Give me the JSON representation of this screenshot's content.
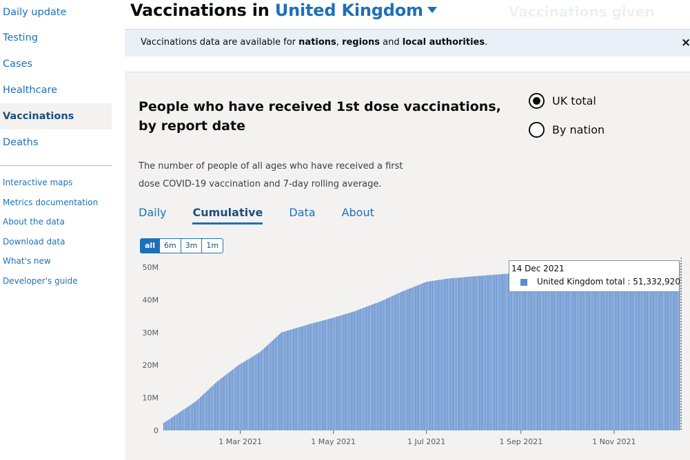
{
  "sidebar": {
    "main_items": [
      {
        "label": "Daily update"
      },
      {
        "label": "Testing"
      },
      {
        "label": "Cases"
      },
      {
        "label": "Healthcare"
      },
      {
        "label": "Vaccinations",
        "active": true
      },
      {
        "label": "Deaths"
      }
    ],
    "sub_items": [
      {
        "label": "Interactive maps"
      },
      {
        "label": "Metrics documentation"
      },
      {
        "label": "About the data"
      },
      {
        "label": "Download data"
      },
      {
        "label": "What's new"
      },
      {
        "label": "Developer's guide"
      }
    ]
  },
  "header": {
    "title_prefix": "Vaccinations in ",
    "area": "United Kingdom",
    "ghost_heading": "Vaccinations given"
  },
  "banner": {
    "text_1": "Vaccinations data are available for ",
    "nations": "nations",
    "comma": ", ",
    "regions": "regions",
    "and": " and ",
    "local_authorities": "local authorities",
    "period": ".",
    "close_label": "×"
  },
  "card": {
    "title": "People who have received 1st dose vaccinations, by report date",
    "description": "The number of people of all ages who have received a first dose COVID-19 vaccination and 7-day rolling average.",
    "radios": [
      {
        "label": "UK total",
        "checked": true
      },
      {
        "label": "By nation",
        "checked": false
      }
    ],
    "tabs": [
      {
        "label": "Daily",
        "active": false
      },
      {
        "label": "Cumulative",
        "active": true
      },
      {
        "label": "Data",
        "active": false
      },
      {
        "label": "About",
        "active": false
      }
    ],
    "ranges": [
      {
        "label": "all",
        "active": true
      },
      {
        "label": "6m",
        "active": false
      },
      {
        "label": "3m",
        "active": false
      },
      {
        "label": "1m",
        "active": false
      }
    ]
  },
  "chart_data": {
    "type": "bar",
    "y_ticks": [
      "0",
      "10M",
      "20M",
      "30M",
      "40M",
      "50M"
    ],
    "y_tick_values": [
      0,
      10000000,
      20000000,
      30000000,
      40000000,
      50000000
    ],
    "ylim": [
      0,
      50000000
    ],
    "x_ticks": [
      "1 Mar 2021",
      "1 May 2021",
      "1 Jul 2021",
      "1 Sep 2021",
      "1 Nov 2021"
    ],
    "x_tick_dates": [
      "2021-03-01",
      "2021-05-01",
      "2021-07-01",
      "2021-09-01",
      "2021-11-01"
    ],
    "x_range": [
      "2021-01-10",
      "2021-12-14"
    ],
    "color": "#5b8ccf",
    "series_anchors": [
      {
        "date": "2021-01-10",
        "value": 2300000
      },
      {
        "date": "2021-01-31",
        "value": 8900000
      },
      {
        "date": "2021-02-14",
        "value": 15000000
      },
      {
        "date": "2021-02-28",
        "value": 20000000
      },
      {
        "date": "2021-03-14",
        "value": 24000000
      },
      {
        "date": "2021-03-28",
        "value": 30000000
      },
      {
        "date": "2021-04-15",
        "value": 32500000
      },
      {
        "date": "2021-05-01",
        "value": 34500000
      },
      {
        "date": "2021-05-15",
        "value": 36500000
      },
      {
        "date": "2021-06-01",
        "value": 39500000
      },
      {
        "date": "2021-06-15",
        "value": 42500000
      },
      {
        "date": "2021-07-01",
        "value": 45500000
      },
      {
        "date": "2021-07-15",
        "value": 46500000
      },
      {
        "date": "2021-08-01",
        "value": 47200000
      },
      {
        "date": "2021-09-01",
        "value": 48300000
      },
      {
        "date": "2021-10-01",
        "value": 49200000
      },
      {
        "date": "2021-11-01",
        "value": 50100000
      },
      {
        "date": "2021-12-14",
        "value": 51332920
      }
    ],
    "tooltip": {
      "date": "14 Dec 2021",
      "series_label": "United Kingdom total : 51,332,920"
    }
  }
}
